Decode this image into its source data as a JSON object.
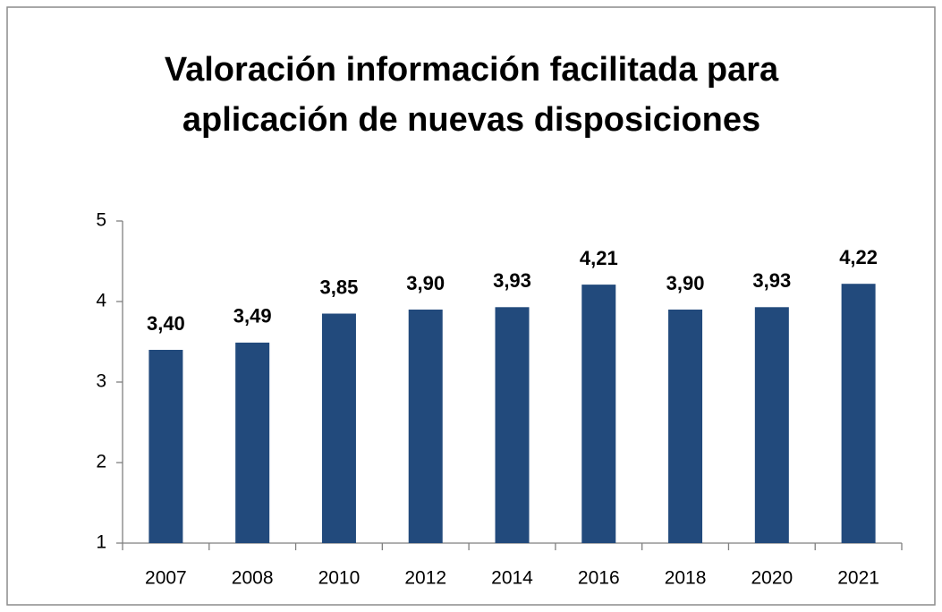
{
  "chart_data": {
    "type": "bar",
    "title": [
      "Valoración información facilitada para",
      "aplicación de nuevas disposiciones"
    ],
    "categories": [
      "2007",
      "2008",
      "2010",
      "2012",
      "2014",
      "2016",
      "2018",
      "2020",
      "2021"
    ],
    "values": [
      3.4,
      3.49,
      3.85,
      3.9,
      3.93,
      4.21,
      3.9,
      3.93,
      4.22
    ],
    "value_labels": [
      "3,40",
      "3,49",
      "3,85",
      "3,90",
      "3,93",
      "4,21",
      "3,90",
      "3,93",
      "4,22"
    ],
    "color": "#224a7c",
    "ylim": [
      1,
      5
    ],
    "yticks": [
      1,
      2,
      3,
      4,
      5
    ],
    "grid": false
  }
}
